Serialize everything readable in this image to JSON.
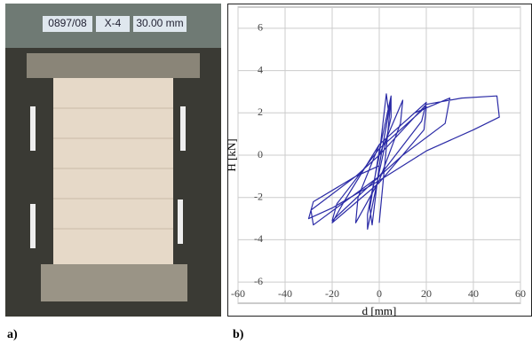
{
  "photo": {
    "tag_id": "0897/08",
    "tag_name": "X-4",
    "tag_size": "30.00 mm"
  },
  "panel_labels": {
    "a": "a)",
    "b": "b)"
  },
  "chart_data": {
    "type": "line",
    "xlabel": "d [mm]",
    "ylabel": "H [kN]",
    "xlim": [
      -60,
      60
    ],
    "xticks": [
      -60,
      -40,
      -20,
      0,
      20,
      40,
      60
    ],
    "ylim": [
      -7,
      7
    ],
    "yticks": [
      -6,
      -4,
      -2,
      0,
      2,
      4,
      6
    ],
    "grid": true,
    "series": [
      {
        "color": "#2b2ba6",
        "x": [
          0,
          3,
          4,
          0,
          -3,
          -4,
          0,
          5,
          5,
          0,
          -5,
          -5,
          0,
          10,
          9,
          0,
          -10,
          -9,
          0,
          20,
          18,
          0,
          -20,
          -18,
          0,
          20,
          19,
          0,
          -20,
          -15,
          0,
          15,
          30,
          28,
          10,
          0,
          -28,
          -29,
          -10,
          0,
          20,
          35,
          50,
          51,
          40,
          20,
          0,
          -20,
          -30,
          -28,
          -10,
          0,
          5,
          0
        ],
        "values": [
          0,
          2.9,
          2,
          -0.5,
          -3.3,
          -2.5,
          0.2,
          2.8,
          1.8,
          -0.8,
          -3.5,
          -2.8,
          0,
          2.6,
          1.5,
          -1.2,
          -3.2,
          -2,
          0.5,
          2.5,
          1.6,
          -1,
          -3.1,
          -2.3,
          0.3,
          2.3,
          1.2,
          -1.3,
          -3.2,
          -2.2,
          0.5,
          2,
          2.7,
          1.5,
          0,
          -1,
          -3.3,
          -2.6,
          -1,
          0,
          2.4,
          2.7,
          2.8,
          1.8,
          1.2,
          0.2,
          -1.2,
          -2.5,
          -3,
          -2.2,
          -1,
          -0.5,
          2.7,
          -3.2
        ]
      }
    ]
  }
}
